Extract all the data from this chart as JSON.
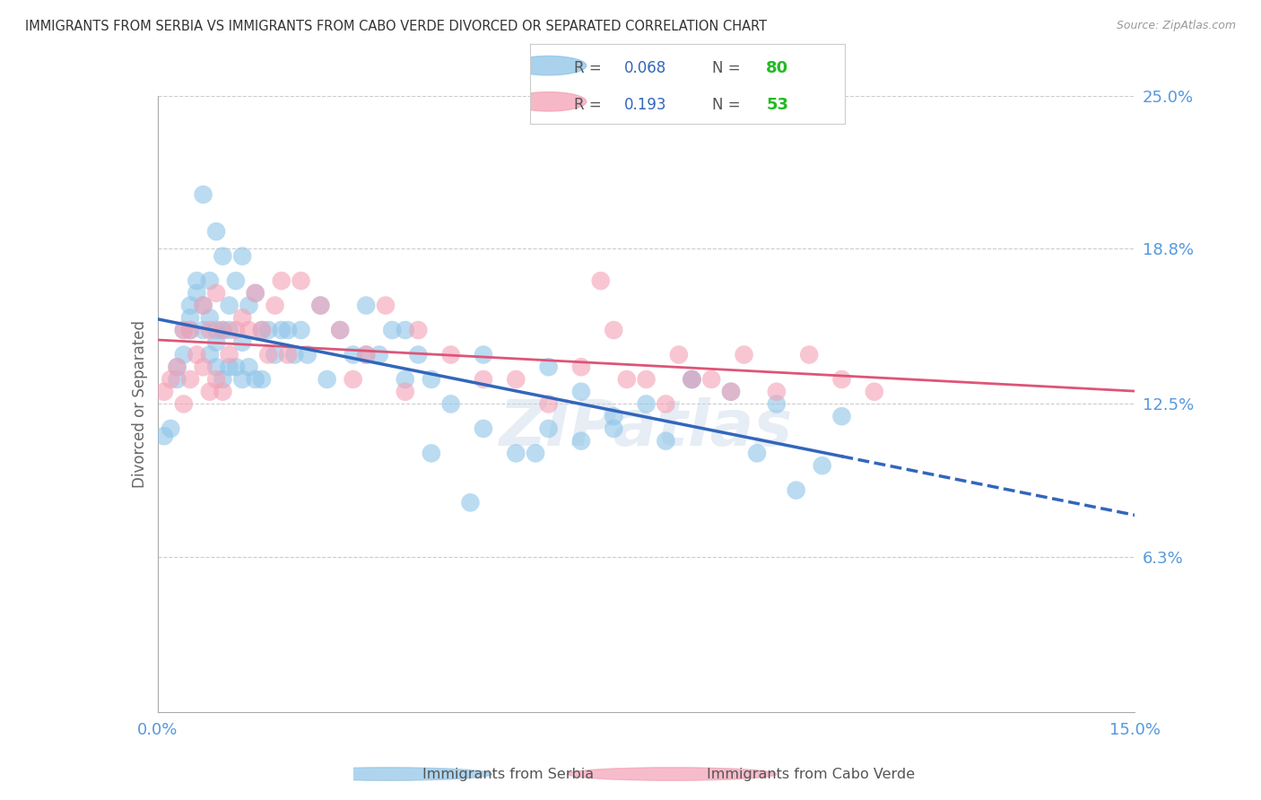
{
  "title": "IMMIGRANTS FROM SERBIA VS IMMIGRANTS FROM CABO VERDE DIVORCED OR SEPARATED CORRELATION CHART",
  "source": "Source: ZipAtlas.com",
  "ylabel_label": "Divorced or Separated",
  "xmin": 0.0,
  "xmax": 0.15,
  "ymin": 0.0,
  "ymax": 0.25,
  "serbia_R": 0.068,
  "serbia_N": 80,
  "caboverde_R": 0.193,
  "caboverde_N": 53,
  "serbia_color": "#8ec4e8",
  "caboverde_color": "#f4a0b5",
  "serbia_line_color": "#3366bb",
  "caboverde_line_color": "#dd5577",
  "serbia_label": "Immigrants from Serbia",
  "caboverde_label": "Immigrants from Cabo Verde",
  "legend_R_color": "#3366bb",
  "legend_N_color": "#22bb22",
  "background_color": "#ffffff",
  "axis_label_color": "#5599dd",
  "title_color": "#333333",
  "watermark": "ZIPatlas",
  "serbia_x": [
    0.001,
    0.002,
    0.003,
    0.003,
    0.004,
    0.004,
    0.005,
    0.005,
    0.005,
    0.006,
    0.006,
    0.007,
    0.007,
    0.007,
    0.008,
    0.008,
    0.008,
    0.009,
    0.009,
    0.009,
    0.009,
    0.01,
    0.01,
    0.01,
    0.011,
    0.011,
    0.011,
    0.012,
    0.012,
    0.013,
    0.013,
    0.013,
    0.014,
    0.014,
    0.015,
    0.015,
    0.016,
    0.016,
    0.017,
    0.018,
    0.019,
    0.02,
    0.021,
    0.022,
    0.023,
    0.025,
    0.026,
    0.028,
    0.03,
    0.032,
    0.034,
    0.036,
    0.038,
    0.04,
    0.042,
    0.045,
    0.048,
    0.05,
    0.055,
    0.058,
    0.06,
    0.065,
    0.07,
    0.075,
    0.078,
    0.082,
    0.088,
    0.092,
    0.098,
    0.102,
    0.032,
    0.038,
    0.042,
    0.05,
    0.06,
    0.065,
    0.07,
    0.082,
    0.095,
    0.105
  ],
  "serbia_y": [
    0.112,
    0.115,
    0.135,
    0.14,
    0.145,
    0.155,
    0.155,
    0.16,
    0.165,
    0.17,
    0.175,
    0.155,
    0.165,
    0.21,
    0.145,
    0.16,
    0.175,
    0.14,
    0.15,
    0.155,
    0.195,
    0.135,
    0.155,
    0.185,
    0.14,
    0.155,
    0.165,
    0.14,
    0.175,
    0.135,
    0.15,
    0.185,
    0.14,
    0.165,
    0.135,
    0.17,
    0.135,
    0.155,
    0.155,
    0.145,
    0.155,
    0.155,
    0.145,
    0.155,
    0.145,
    0.165,
    0.135,
    0.155,
    0.145,
    0.145,
    0.145,
    0.155,
    0.135,
    0.145,
    0.105,
    0.125,
    0.085,
    0.115,
    0.105,
    0.105,
    0.115,
    0.11,
    0.115,
    0.125,
    0.11,
    0.135,
    0.13,
    0.105,
    0.09,
    0.1,
    0.165,
    0.155,
    0.135,
    0.145,
    0.14,
    0.13,
    0.12,
    0.135,
    0.125,
    0.12
  ],
  "caboverde_x": [
    0.001,
    0.002,
    0.003,
    0.004,
    0.004,
    0.005,
    0.005,
    0.006,
    0.007,
    0.007,
    0.008,
    0.008,
    0.009,
    0.009,
    0.01,
    0.01,
    0.011,
    0.012,
    0.013,
    0.014,
    0.015,
    0.016,
    0.017,
    0.018,
    0.019,
    0.02,
    0.022,
    0.025,
    0.028,
    0.03,
    0.032,
    0.035,
    0.038,
    0.04,
    0.045,
    0.05,
    0.055,
    0.06,
    0.065,
    0.07,
    0.075,
    0.08,
    0.085,
    0.09,
    0.095,
    0.1,
    0.105,
    0.11,
    0.068,
    0.072,
    0.078,
    0.082,
    0.088
  ],
  "caboverde_y": [
    0.13,
    0.135,
    0.14,
    0.125,
    0.155,
    0.135,
    0.155,
    0.145,
    0.14,
    0.165,
    0.13,
    0.155,
    0.135,
    0.17,
    0.13,
    0.155,
    0.145,
    0.155,
    0.16,
    0.155,
    0.17,
    0.155,
    0.145,
    0.165,
    0.175,
    0.145,
    0.175,
    0.165,
    0.155,
    0.135,
    0.145,
    0.165,
    0.13,
    0.155,
    0.145,
    0.135,
    0.135,
    0.125,
    0.14,
    0.155,
    0.135,
    0.145,
    0.135,
    0.145,
    0.13,
    0.145,
    0.135,
    0.13,
    0.175,
    0.135,
    0.125,
    0.135,
    0.13
  ]
}
